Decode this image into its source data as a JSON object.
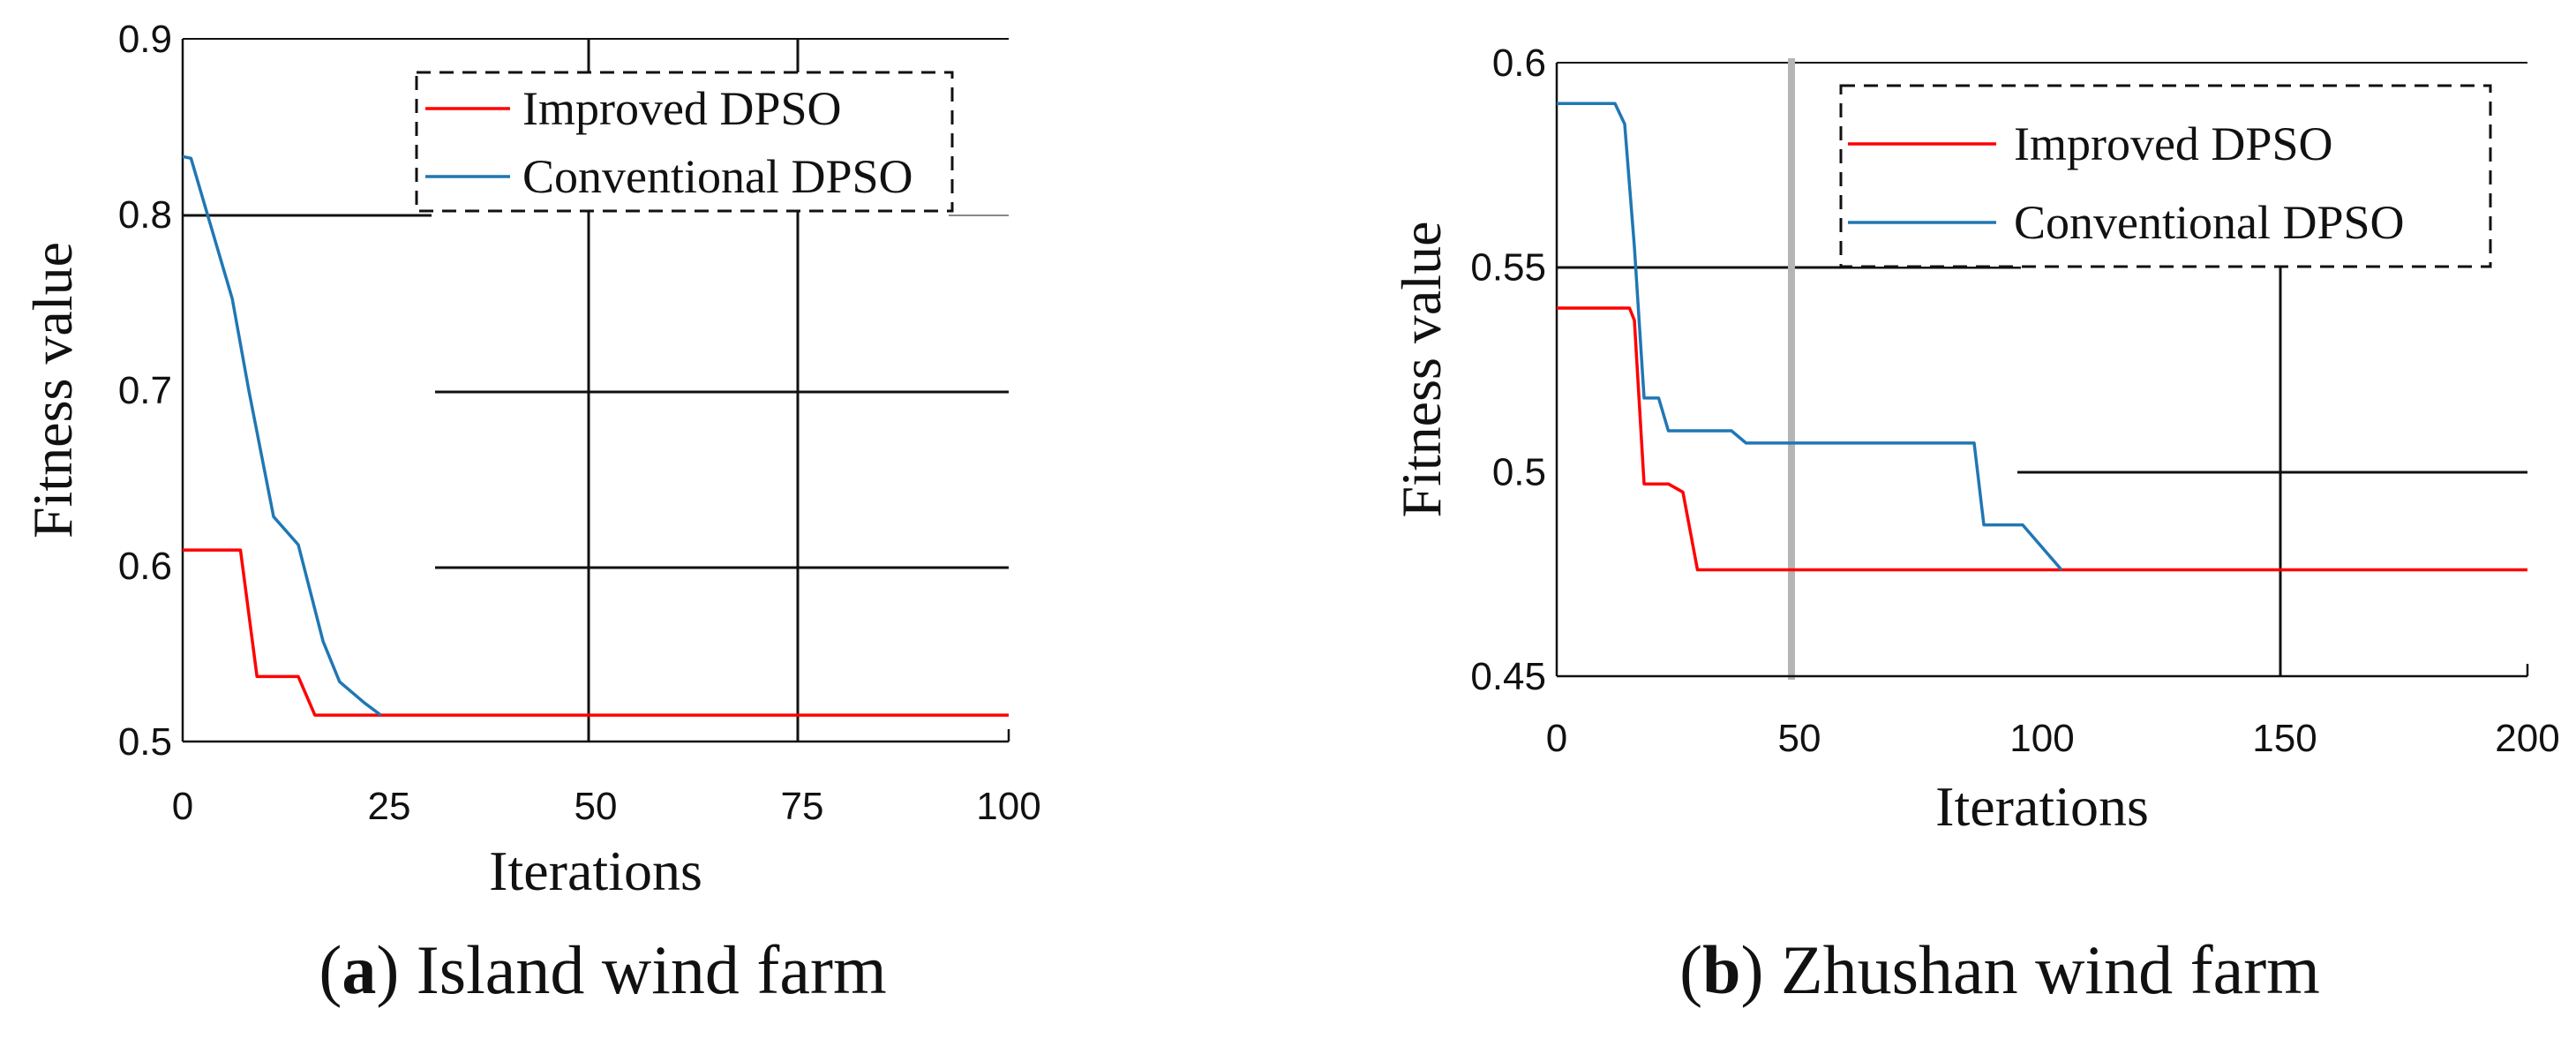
{
  "chart_data": [
    {
      "id": "a",
      "type": "line",
      "caption_letter": "a",
      "caption_text": "Island wind farm",
      "xlabel": "Iterations",
      "ylabel": "Fitness value",
      "xlim": [
        0,
        100
      ],
      "ylim": [
        0.5,
        0.9
      ],
      "xticks": [
        "0",
        "25",
        "50",
        "75",
        "100"
      ],
      "xtick_values": [
        0,
        25,
        50,
        75,
        100
      ],
      "yticks": [
        "0.5",
        "0.6",
        "0.7",
        "0.8",
        "0.9"
      ],
      "ytick_values": [
        0.5,
        0.6,
        0.7,
        0.8,
        0.9
      ],
      "legend_position": "top-right",
      "series": [
        {
          "name": "Improved DPSO",
          "color": "#ff0000",
          "x": [
            0,
            7,
            9,
            14,
            16,
            100
          ],
          "y": [
            0.609,
            0.609,
            0.537,
            0.537,
            0.515,
            0.515
          ]
        },
        {
          "name": "Conventional DPSO",
          "color": "#1f77b4",
          "x": [
            0,
            1,
            3,
            6,
            8,
            11,
            14,
            17,
            19,
            22,
            24
          ],
          "y": [
            0.833,
            0.832,
            0.8,
            0.752,
            0.7,
            0.628,
            0.612,
            0.557,
            0.534,
            0.522,
            0.515
          ]
        }
      ]
    },
    {
      "id": "b",
      "type": "line",
      "caption_letter": "b",
      "caption_text": "Zhushan wind farm",
      "xlabel": "Iterations",
      "ylabel": "Fitness value",
      "xlim": [
        0,
        200
      ],
      "ylim": [
        0.45,
        0.6
      ],
      "xticks": [
        "0",
        "50",
        "100",
        "150",
        "200"
      ],
      "xtick_values": [
        0,
        50,
        100,
        150,
        200
      ],
      "yticks": [
        "0.45",
        "0.5",
        "0.55",
        "0.6"
      ],
      "ytick_values": [
        0.45,
        0.5,
        0.55,
        0.6
      ],
      "legend_position": "top-right",
      "series": [
        {
          "name": "Improved DPSO",
          "color": "#ff0000",
          "x": [
            0,
            15,
            16,
            18,
            23,
            26,
            29,
            200
          ],
          "y": [
            0.54,
            0.54,
            0.537,
            0.497,
            0.497,
            0.495,
            0.476,
            0.476
          ]
        },
        {
          "name": "Conventional DPSO",
          "color": "#1f77b4",
          "x": [
            0,
            12,
            14,
            16,
            18,
            21,
            23,
            36,
            39,
            86,
            88,
            96,
            104
          ],
          "y": [
            0.59,
            0.59,
            0.585,
            0.555,
            0.518,
            0.518,
            0.51,
            0.51,
            0.507,
            0.507,
            0.487,
            0.487,
            0.476
          ]
        }
      ]
    }
  ]
}
